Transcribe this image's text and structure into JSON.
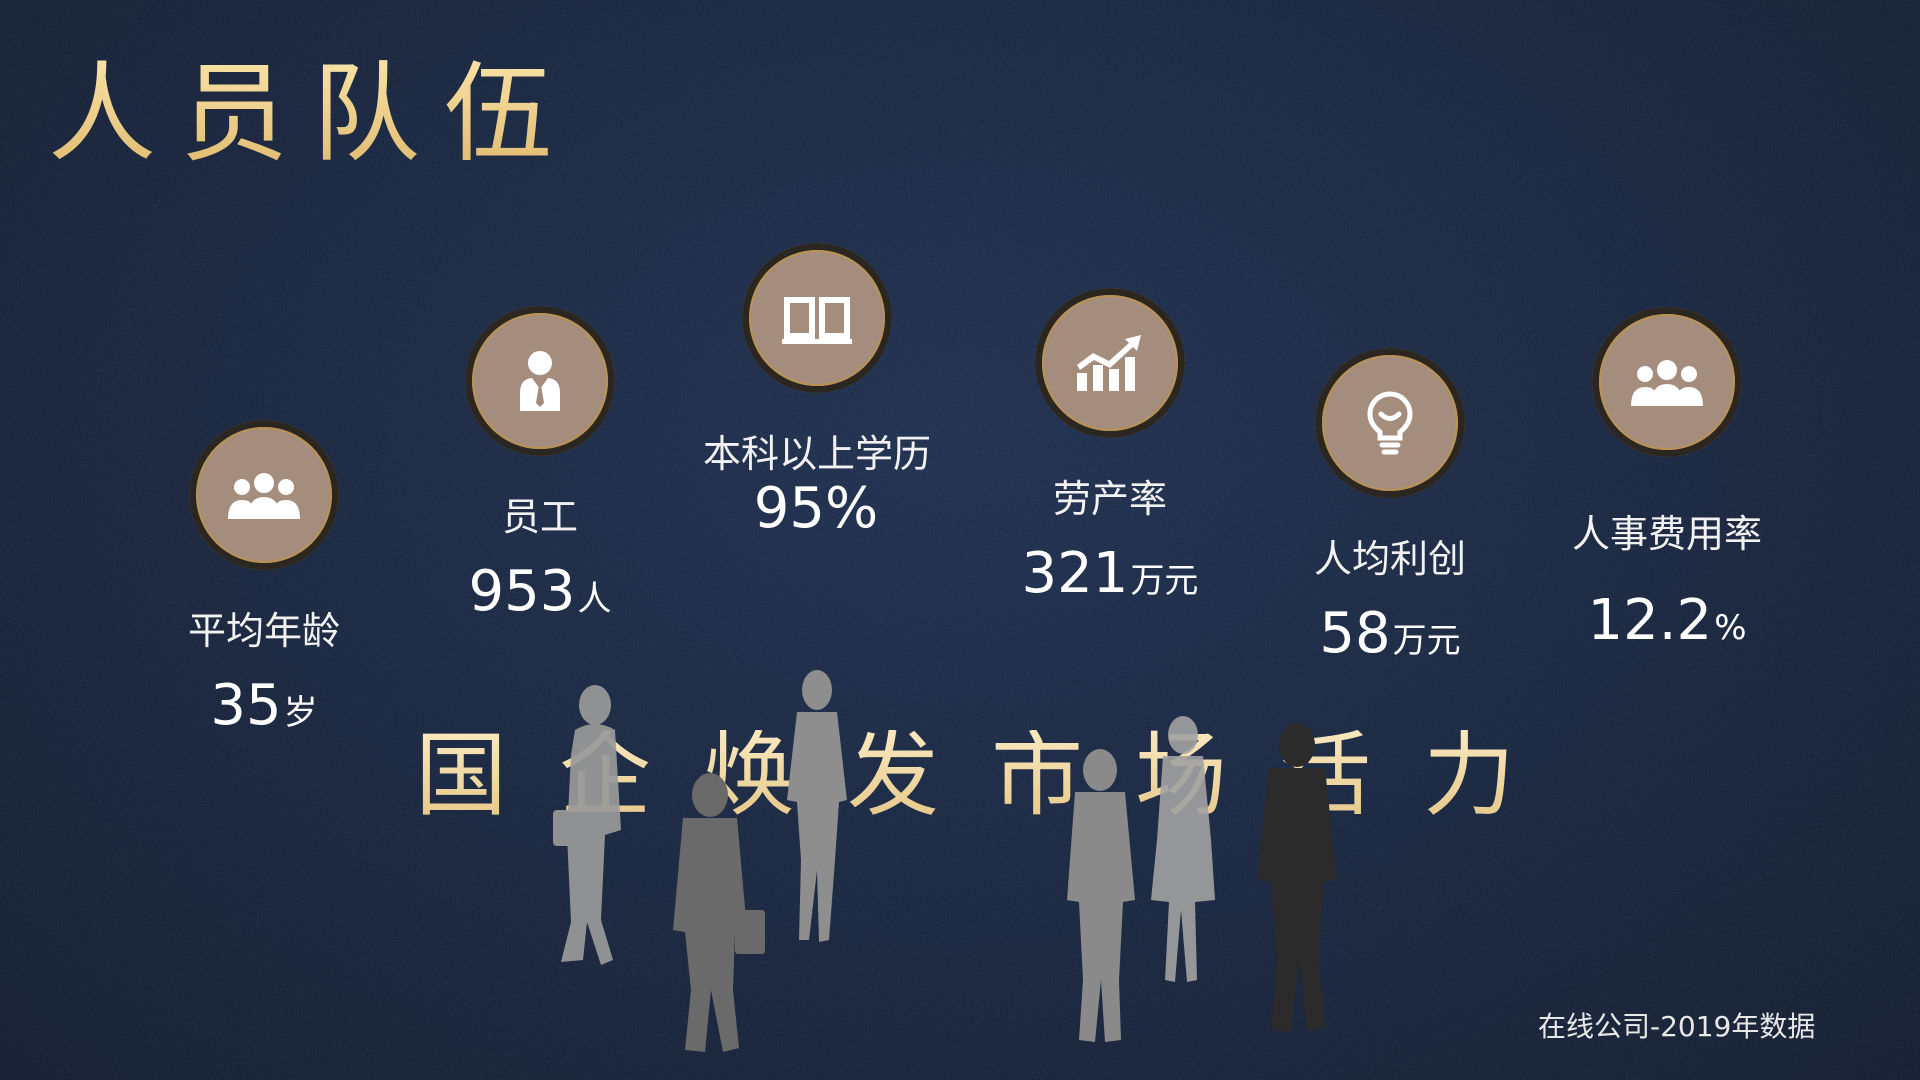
{
  "title": "人员队伍",
  "slogan": "国企焕发市场活力",
  "stats": [
    {
      "icon": "team-icon",
      "label": "平均年龄",
      "value": "35",
      "unit": "岁"
    },
    {
      "icon": "employee-icon",
      "label": "员工",
      "value": "953",
      "unit": "人"
    },
    {
      "icon": "book-icon",
      "label": "本科以上学历",
      "value": "95%",
      "unit": ""
    },
    {
      "icon": "growth-chart-icon",
      "label": "劳产率",
      "value": "321",
      "unit": "万元"
    },
    {
      "icon": "lightbulb-icon",
      "label": "人均利创",
      "value": "58",
      "unit": "万元"
    },
    {
      "icon": "team-icon",
      "label": "人事费用率",
      "value": "12.2",
      "unit": "%"
    }
  ],
  "footnote": "在线公司-2019年数据",
  "colors": {
    "background": "#0f1d38",
    "gold": "#f3d68f",
    "icon_fill": "#a48d7d",
    "icon_ring": "#b99255"
  }
}
